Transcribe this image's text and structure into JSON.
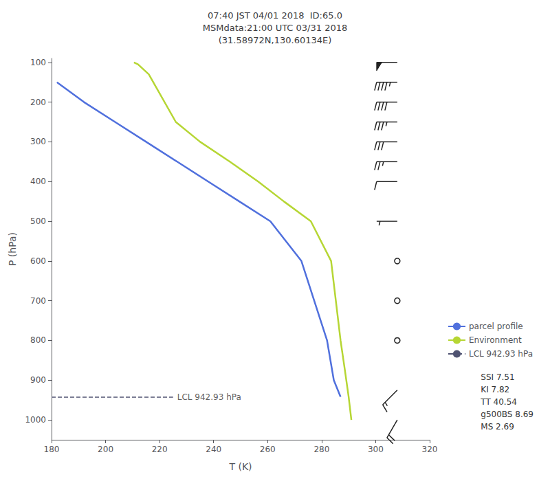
{
  "chart_data": {
    "type": "line",
    "title": "07:40 JST 04/01 2018  ID:65.0\nMSMdata:21:00 UTC 03/31 2018\n(31.58972N,130.60134E)",
    "xlabel": "T (K)",
    "ylabel": "P (hPa)",
    "xlim": [
      180,
      320
    ],
    "ylim": [
      1050,
      90
    ],
    "xticks": [
      180,
      200,
      220,
      240,
      260,
      280,
      300,
      320
    ],
    "yticks": [
      100,
      200,
      300,
      400,
      500,
      600,
      700,
      800,
      900,
      1000
    ],
    "grid": false,
    "legend": "lower right",
    "series": [
      {
        "name": "parcel profile",
        "line_style": "solid",
        "x": [
          182.0,
          192.0,
          203.5,
          215.0,
          226.5,
          238.0,
          249.5,
          261.0,
          272.5,
          282.0,
          284.5,
          287.0
        ],
        "values": [
          150,
          200,
          250,
          300,
          350,
          400,
          450,
          500,
          600,
          800,
          900,
          942
        ]
      },
      {
        "name": "Environment",
        "line_style": "solid",
        "x": [
          210.5,
          212.0,
          216.0,
          226.0,
          235.0,
          246.0,
          256.5,
          266.0,
          276.0,
          283.5,
          287.0,
          288.5,
          290.0,
          291.0
        ],
        "values": [
          100,
          105,
          130,
          250,
          300,
          350,
          400,
          450,
          500,
          600,
          800,
          870,
          942,
          1000
        ]
      },
      {
        "name": "LCL 942.93 hPa",
        "line_style": "dashed",
        "x": [
          180,
          225
        ],
        "values": [
          942.93,
          942.93
        ]
      }
    ],
    "annotations": [
      {
        "text": "LCL 942.93 hPa",
        "x": 225,
        "y": 942.93
      }
    ],
    "indices": [
      "SSI 7.51",
      "KI 7.82",
      "TT 40.54",
      "g500BS 8.69",
      "MS 2.69"
    ],
    "wind_barbs": {
      "x": 308,
      "pressure": [
        100,
        150,
        200,
        250,
        300,
        350,
        400,
        500,
        600,
        700,
        800,
        925,
        1000
      ],
      "speed_kt": [
        50,
        45,
        40,
        35,
        30,
        25,
        10,
        5,
        0,
        0,
        0,
        15,
        20
      ],
      "direction_deg": [
        270,
        270,
        270,
        270,
        270,
        270,
        270,
        270,
        0,
        0,
        0,
        225,
        210
      ]
    }
  }
}
